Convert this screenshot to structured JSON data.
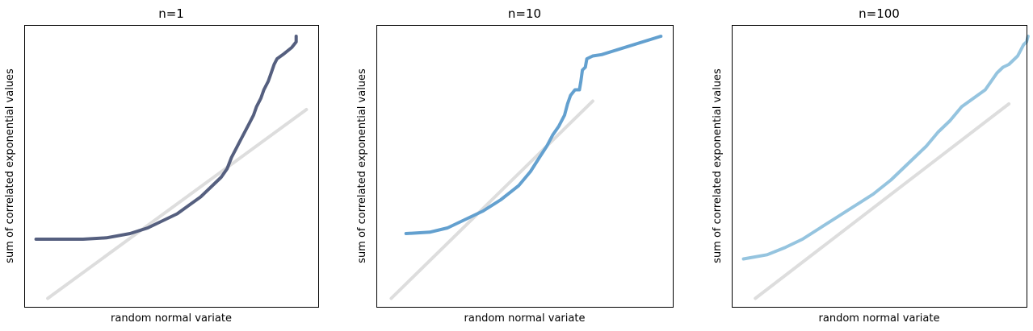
{
  "chart_data": [
    {
      "type": "line",
      "title": "n=1",
      "xlabel": "random normal variate",
      "ylabel": "sum of correlated exponential values",
      "xlim": [
        0,
        100
      ],
      "ylim": [
        0,
        100
      ],
      "grid": false,
      "series": [
        {
          "color": "#555f7f",
          "points": [
            [
              4,
              24
            ],
            [
              20,
              24
            ],
            [
              28,
              24.5
            ],
            [
              36,
              26
            ],
            [
              42,
              28
            ],
            [
              48,
              31
            ],
            [
              52,
              33
            ],
            [
              56,
              36
            ],
            [
              60,
              39
            ],
            [
              64,
              43
            ],
            [
              67,
              46
            ],
            [
              69,
              49
            ],
            [
              70.5,
              53
            ],
            [
              72,
              56
            ],
            [
              73.5,
              59
            ],
            [
              75,
              62
            ],
            [
              76.5,
              65
            ],
            [
              78,
              68
            ],
            [
              79,
              71
            ],
            [
              80.5,
              74
            ],
            [
              81.5,
              77
            ],
            [
              83,
              80
            ],
            [
              84,
              83
            ],
            [
              85,
              86
            ],
            [
              86,
              88
            ],
            [
              88,
              89.5
            ],
            [
              91,
              92
            ],
            [
              92.5,
              94
            ],
            [
              92.5,
              96
            ]
          ]
        },
        {
          "color": "#dddddd",
          "points": [
            [
              8,
              3
            ],
            [
              96,
              70
            ]
          ]
        }
      ]
    },
    {
      "type": "line",
      "title": "n=10",
      "xlabel": "random normal variate",
      "ylabel": "sum of correlated exponential values",
      "xlim": [
        0,
        100
      ],
      "ylim": [
        0,
        100
      ],
      "grid": false,
      "series": [
        {
          "color": "#63a0cf",
          "points": [
            [
              10,
              26
            ],
            [
              18,
              26.5
            ],
            [
              24,
              28
            ],
            [
              30,
              31
            ],
            [
              36,
              34
            ],
            [
              42,
              38
            ],
            [
              48,
              43
            ],
            [
              52,
              48
            ],
            [
              55,
              53
            ],
            [
              57.5,
              57
            ],
            [
              59.5,
              61
            ],
            [
              61.5,
              64
            ],
            [
              63.5,
              68
            ],
            [
              64.5,
              72
            ],
            [
              65.5,
              75
            ],
            [
              67,
              77
            ],
            [
              68.5,
              77
            ],
            [
              69,
              80
            ],
            [
              69.5,
              84
            ],
            [
              70.5,
              85
            ],
            [
              71,
              88
            ],
            [
              73,
              89
            ],
            [
              76,
              89.5
            ],
            [
              96,
              96
            ]
          ]
        },
        {
          "color": "#dddddd",
          "points": [
            [
              5,
              3
            ],
            [
              73,
              73
            ]
          ]
        }
      ]
    },
    {
      "type": "line",
      "title": "n=100",
      "xlabel": "random normal variate",
      "ylabel": "sum of correlated exponential values",
      "xlim": [
        0,
        100
      ],
      "ylim": [
        0,
        100
      ],
      "grid": false,
      "series": [
        {
          "color": "#95c4df",
          "points": [
            [
              4,
              17
            ],
            [
              12,
              18.5
            ],
            [
              18,
              21
            ],
            [
              24,
              24
            ],
            [
              30,
              28
            ],
            [
              36,
              32
            ],
            [
              42,
              36
            ],
            [
              48,
              40
            ],
            [
              54,
              45
            ],
            [
              58,
              49
            ],
            [
              62,
              53
            ],
            [
              66,
              57
            ],
            [
              70,
              62
            ],
            [
              74,
              66
            ],
            [
              78,
              71
            ],
            [
              82,
              74
            ],
            [
              86,
              77
            ],
            [
              88,
              80
            ],
            [
              90,
              83
            ],
            [
              92,
              85
            ],
            [
              94,
              86
            ],
            [
              96,
              88
            ],
            [
              97,
              89
            ],
            [
              98,
              91
            ],
            [
              99,
              93
            ],
            [
              100,
              94
            ],
            [
              100.5,
              96
            ]
          ]
        },
        {
          "color": "#dddddd",
          "points": [
            [
              8,
              3
            ],
            [
              94,
              72
            ]
          ]
        }
      ]
    }
  ]
}
